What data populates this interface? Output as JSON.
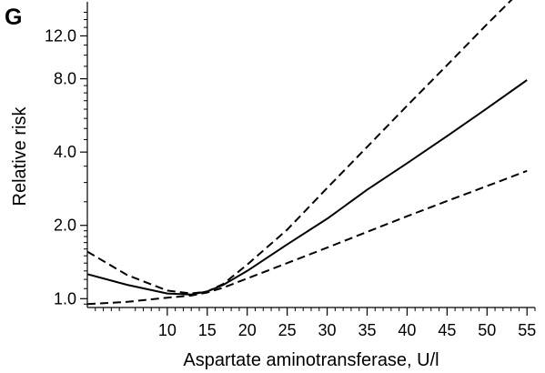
{
  "panel_label": "G",
  "chart_data": {
    "type": "line",
    "title": "",
    "xlabel": "Aspartate aminotransferase, U/l",
    "ylabel": "Relative risk",
    "xscale": "linear",
    "yscale": "log",
    "xlim": [
      0,
      56
    ],
    "ylim": [
      0.92,
      16
    ],
    "xticks": [
      10,
      15,
      20,
      25,
      30,
      35,
      40,
      45,
      50,
      55
    ],
    "yticks": [
      1.0,
      2.0,
      4.0,
      8.0,
      12.0
    ],
    "ytick_labels": [
      "1.0",
      "2.0",
      "4.0",
      "8.0",
      "12.0"
    ],
    "grid": false,
    "legend": "none",
    "series": [
      {
        "style": "solid",
        "x": [
          0,
          5,
          10,
          13,
          15,
          17,
          20,
          25,
          30,
          35,
          40,
          45,
          50,
          55
        ],
        "y": [
          1.26,
          1.14,
          1.05,
          1.04,
          1.07,
          1.14,
          1.3,
          1.67,
          2.13,
          2.8,
          3.6,
          4.65,
          6.05,
          7.9
        ]
      },
      {
        "style": "dashed",
        "x": [
          0,
          5,
          10,
          13,
          15,
          17,
          20,
          25,
          30,
          35,
          40,
          45,
          50,
          55
        ],
        "y": [
          1.56,
          1.25,
          1.08,
          1.05,
          1.07,
          1.15,
          1.38,
          1.92,
          2.85,
          4.2,
          6.2,
          9.1,
          13.4,
          19.5
        ]
      },
      {
        "style": "dashed",
        "x": [
          0,
          5,
          10,
          13,
          15,
          17,
          20,
          25,
          30,
          35,
          40,
          45,
          50,
          55
        ],
        "y": [
          0.95,
          0.97,
          1.01,
          1.03,
          1.06,
          1.11,
          1.21,
          1.4,
          1.62,
          1.88,
          2.18,
          2.52,
          2.9,
          3.35
        ]
      }
    ]
  }
}
